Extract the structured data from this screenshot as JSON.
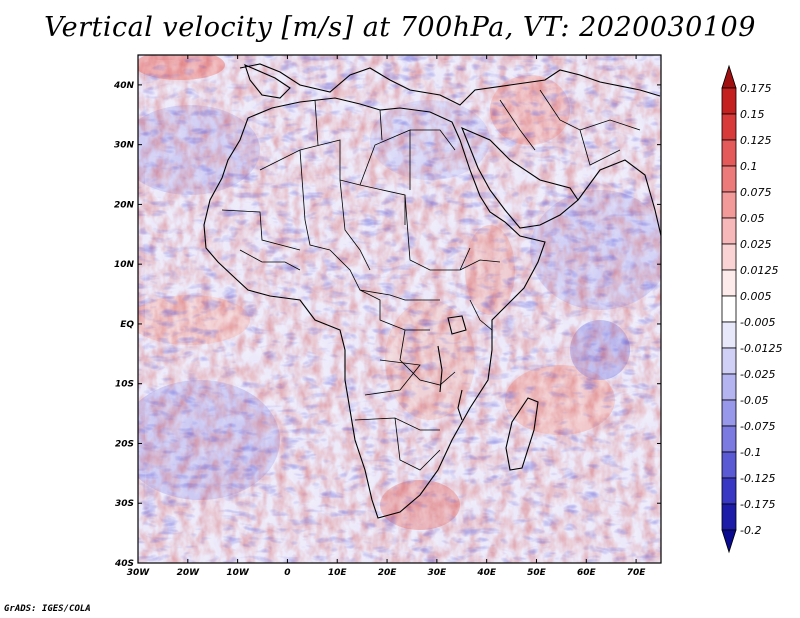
{
  "title": "Vertical velocity [m/s] at 700hPa, VT: 2020030109",
  "credit": "GrADS: IGES/COLA",
  "map": {
    "lon_labels": [
      "30W",
      "20W",
      "10W",
      "0",
      "10E",
      "20E",
      "30E",
      "40E",
      "50E",
      "60E",
      "70E"
    ],
    "lat_labels": [
      "40N",
      "30N",
      "20N",
      "10N",
      "EQ",
      "10S",
      "20S",
      "30S",
      "40S"
    ],
    "region": "Africa",
    "lon_range": [
      -30,
      75
    ],
    "lat_range": [
      -40,
      45
    ]
  },
  "colorbar": {
    "labels": [
      "0.175",
      "0.15",
      "0.125",
      "0.1",
      "0.075",
      "0.05",
      "0.025",
      "0.0125",
      "0.005",
      "-0.005",
      "-0.0125",
      "-0.025",
      "-0.05",
      "-0.075",
      "-0.1",
      "-0.125",
      "-0.175",
      "-0.2"
    ],
    "colors": [
      "#a01010",
      "#c42020",
      "#d83a3a",
      "#e45a5a",
      "#ec7a7a",
      "#f29a9a",
      "#f6b8b8",
      "#fad4d4",
      "#fdeaea",
      "#ffffff",
      "#e8e8fb",
      "#d0d0f6",
      "#b4b4f0",
      "#9898ea",
      "#7a7ae0",
      "#5a5ad4",
      "#3838c4",
      "#1c1ca8",
      "#0a0a90"
    ]
  }
}
